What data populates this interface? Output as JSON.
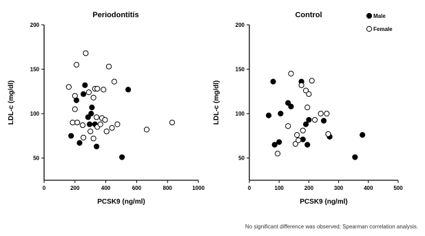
{
  "chart_data": [
    {
      "type": "scatter",
      "title": "Periodontitis",
      "xlabel": "PCSK9 (ng/ml)",
      "ylabel": "LDL-c (mg/dl)",
      "xlim": [
        0,
        1000
      ],
      "ylim": [
        25,
        200
      ],
      "xticks": [
        "0",
        "200",
        "400",
        "600",
        "800",
        "1000"
      ],
      "yticks": [
        "50",
        "100",
        "150",
        "200"
      ],
      "series": [
        {
          "name": "Male",
          "marker": "filled-circle",
          "x": [
            175,
            210,
            230,
            255,
            265,
            285,
            295,
            305,
            310,
            330,
            340,
            505,
            545
          ],
          "y": [
            75,
            115,
            67,
            122,
            132,
            96,
            88,
            100,
            107,
            88,
            63,
            51,
            127
          ]
        },
        {
          "name": "Female",
          "marker": "open-circle",
          "x": [
            160,
            185,
            200,
            200,
            210,
            215,
            250,
            255,
            270,
            290,
            300,
            320,
            320,
            330,
            340,
            345,
            345,
            365,
            375,
            385,
            395,
            405,
            420,
            440,
            455,
            475,
            665,
            830
          ],
          "y": [
            130,
            90,
            105,
            120,
            155,
            90,
            87,
            73,
            168,
            124,
            80,
            72,
            118,
            128,
            96,
            128,
            85,
            88,
            95,
            127,
            93,
            80,
            153,
            84,
            136,
            88,
            82,
            90
          ]
        }
      ]
    },
    {
      "type": "scatter",
      "title": "Control",
      "xlabel": "PCSK9 (ng/ml)",
      "ylabel": "LDL-c (mg/dl)",
      "xlim": [
        0,
        500
      ],
      "ylim": [
        25,
        200
      ],
      "xticks": [
        "0",
        "100",
        "200",
        "300",
        "400",
        "500"
      ],
      "yticks": [
        "50",
        "100",
        "150",
        "200"
      ],
      "legend_position": "top-right",
      "series": [
        {
          "name": "Male",
          "marker": "filled-circle",
          "x": [
            65,
            80,
            85,
            100,
            105,
            130,
            140,
            175,
            180,
            190,
            195,
            200,
            250,
            270,
            355,
            380
          ],
          "y": [
            98,
            136,
            65,
            68,
            100,
            112,
            108,
            136,
            71,
            88,
            65,
            93,
            92,
            74,
            51,
            76
          ]
        },
        {
          "name": "Female",
          "marker": "open-circle",
          "x": [
            95,
            130,
            140,
            155,
            160,
            165,
            175,
            180,
            190,
            195,
            200,
            210,
            220,
            240,
            260,
            265
          ],
          "y": [
            55,
            86,
            145,
            66,
            76,
            70,
            132,
            81,
            126,
            107,
            122,
            137,
            93,
            100,
            100,
            77
          ]
        }
      ]
    }
  ],
  "footnote": "No significant difference was observed; Spearman correlation analysis."
}
